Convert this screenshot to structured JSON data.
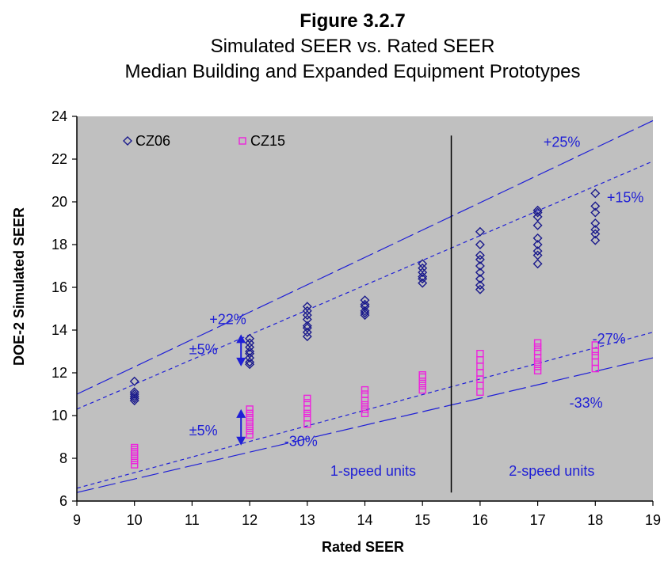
{
  "chart_data": {
    "type": "scatter",
    "title": "Figure 3.2.7",
    "subtitle_1": "Simulated SEER vs. Rated SEER",
    "subtitle_2": "Median Building and Expanded Equipment Prototypes",
    "xlabel": "Rated SEER",
    "ylabel": "DOE-2 Simulated SEER",
    "xlim": [
      9,
      19
    ],
    "ylim": [
      6,
      24
    ],
    "xticks": [
      "9",
      "10",
      "11",
      "12",
      "13",
      "14",
      "15",
      "16",
      "17",
      "18",
      "19"
    ],
    "yticks": [
      "6",
      "8",
      "10",
      "12",
      "14",
      "16",
      "18",
      "20",
      "22",
      "24"
    ],
    "grid": false,
    "legend": "top-left",
    "plot_background": "#c0c0c0",
    "series": [
      {
        "name": "CZ06",
        "marker": "diamond",
        "color": "#1a1a8c",
        "points": [
          [
            10,
            10.7
          ],
          [
            10,
            10.8
          ],
          [
            10,
            10.9
          ],
          [
            10,
            11.0
          ],
          [
            10,
            11.1
          ],
          [
            10,
            11.6
          ],
          [
            12,
            12.4
          ],
          [
            12,
            12.5
          ],
          [
            12,
            12.7
          ],
          [
            12,
            12.9
          ],
          [
            12,
            13.0
          ],
          [
            12,
            13.2
          ],
          [
            12,
            13.4
          ],
          [
            12,
            13.6
          ],
          [
            13,
            13.7
          ],
          [
            13,
            13.9
          ],
          [
            13,
            14.1
          ],
          [
            13,
            14.2
          ],
          [
            13,
            14.5
          ],
          [
            13,
            14.7
          ],
          [
            13,
            14.9
          ],
          [
            13,
            15.1
          ],
          [
            14,
            14.7
          ],
          [
            14,
            14.8
          ],
          [
            14,
            14.9
          ],
          [
            14,
            15.1
          ],
          [
            14,
            15.2
          ],
          [
            14,
            15.4
          ],
          [
            15,
            16.2
          ],
          [
            15,
            16.4
          ],
          [
            15,
            16.5
          ],
          [
            15,
            16.7
          ],
          [
            15,
            16.9
          ],
          [
            15,
            17.1
          ],
          [
            16,
            15.9
          ],
          [
            16,
            16.1
          ],
          [
            16,
            16.4
          ],
          [
            16,
            16.7
          ],
          [
            16,
            17.0
          ],
          [
            16,
            17.3
          ],
          [
            16,
            17.5
          ],
          [
            16,
            18.0
          ],
          [
            16,
            18.6
          ],
          [
            17,
            17.1
          ],
          [
            17,
            17.5
          ],
          [
            17,
            17.7
          ],
          [
            17,
            18.0
          ],
          [
            17,
            18.3
          ],
          [
            17,
            18.9
          ],
          [
            17,
            19.3
          ],
          [
            17,
            19.5
          ],
          [
            17,
            19.6
          ],
          [
            18,
            18.2
          ],
          [
            18,
            18.5
          ],
          [
            18,
            18.7
          ],
          [
            18,
            19.0
          ],
          [
            18,
            19.5
          ],
          [
            18,
            19.8
          ],
          [
            18,
            20.4
          ]
        ]
      },
      {
        "name": "CZ15",
        "marker": "square",
        "color": "#ee22dd",
        "points": [
          [
            10,
            7.7
          ],
          [
            10,
            7.9
          ],
          [
            10,
            8.0
          ],
          [
            10,
            8.1
          ],
          [
            10,
            8.2
          ],
          [
            10,
            8.3
          ],
          [
            10,
            8.4
          ],
          [
            10,
            8.5
          ],
          [
            12,
            9.1
          ],
          [
            12,
            9.3
          ],
          [
            12,
            9.5
          ],
          [
            12,
            9.7
          ],
          [
            12,
            9.9
          ],
          [
            12,
            10.1
          ],
          [
            12,
            10.3
          ],
          [
            13,
            9.6
          ],
          [
            13,
            9.9
          ],
          [
            13,
            10.1
          ],
          [
            13,
            10.3
          ],
          [
            13,
            10.6
          ],
          [
            13,
            10.8
          ],
          [
            14,
            10.1
          ],
          [
            14,
            10.3
          ],
          [
            14,
            10.5
          ],
          [
            14,
            10.7
          ],
          [
            14,
            11.0
          ],
          [
            14,
            11.2
          ],
          [
            15,
            11.2
          ],
          [
            15,
            11.4
          ],
          [
            15,
            11.6
          ],
          [
            15,
            11.8
          ],
          [
            15,
            11.9
          ],
          [
            16,
            11.1
          ],
          [
            16,
            11.4
          ],
          [
            16,
            11.7
          ],
          [
            16,
            12.0
          ],
          [
            16,
            12.3
          ],
          [
            16,
            12.6
          ],
          [
            16,
            12.9
          ],
          [
            17,
            12.1
          ],
          [
            17,
            12.3
          ],
          [
            17,
            12.5
          ],
          [
            17,
            12.7
          ],
          [
            17,
            13.0
          ],
          [
            17,
            13.2
          ],
          [
            17,
            13.4
          ],
          [
            18,
            12.2
          ],
          [
            18,
            12.5
          ],
          [
            18,
            12.8
          ],
          [
            18,
            13.0
          ],
          [
            18,
            13.3
          ]
        ]
      }
    ],
    "reference_lines": [
      {
        "label": "+25%",
        "style": "long-dash",
        "color": "#1f1fd6",
        "from": [
          9,
          11.0
        ],
        "to": [
          19,
          23.8
        ]
      },
      {
        "label": "+15%",
        "style": "short-dash",
        "color": "#1f1fd6",
        "from": [
          9,
          10.3
        ],
        "to": [
          19,
          21.9
        ]
      },
      {
        "label": "-27%",
        "style": "short-dash",
        "color": "#1f1fd6",
        "from": [
          9,
          6.6
        ],
        "to": [
          19,
          13.9
        ]
      },
      {
        "label": "-33%",
        "style": "long-dash",
        "color": "#1f1fd6",
        "from": [
          9,
          6.4
        ],
        "to": [
          19,
          12.7
        ]
      }
    ],
    "divider_x": 15.5,
    "annotations": [
      {
        "text": "+25%",
        "x": 17.1,
        "y": 22.8
      },
      {
        "text": "+15%",
        "x": 18.2,
        "y": 20.2
      },
      {
        "text": "+22%",
        "x": 11.3,
        "y": 14.5
      },
      {
        "text": "±5%",
        "x": 10.95,
        "y": 13.1
      },
      {
        "text": "±5%",
        "x": 10.95,
        "y": 9.3
      },
      {
        "text": "-30%",
        "x": 12.6,
        "y": 8.8
      },
      {
        "text": "-27%",
        "x": 17.95,
        "y": 13.6
      },
      {
        "text": "-33%",
        "x": 17.55,
        "y": 10.6
      },
      {
        "text": "1-speed units",
        "x": 13.4,
        "y": 7.4
      },
      {
        "text": "2-speed units",
        "x": 16.5,
        "y": 7.4
      }
    ],
    "double_arrows": [
      {
        "x": 11.85,
        "y1": 12.3,
        "y2": 13.8
      },
      {
        "x": 11.85,
        "y1": 8.6,
        "y2": 10.3
      }
    ]
  }
}
